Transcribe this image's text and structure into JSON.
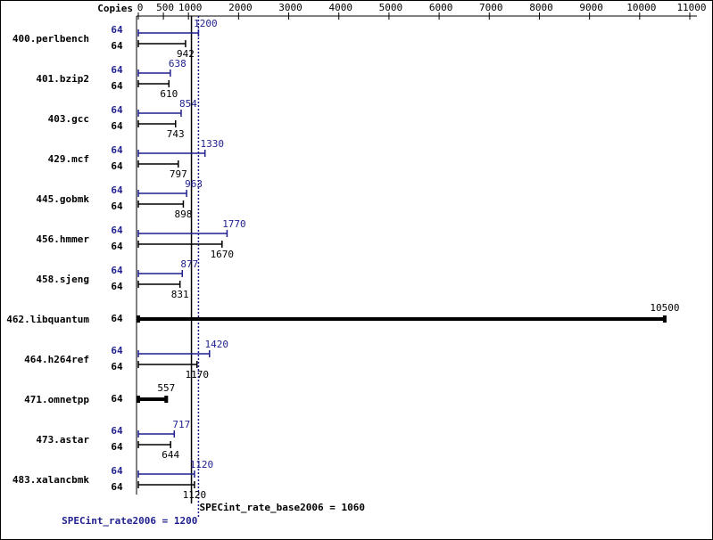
{
  "chart_data": {
    "type": "bar",
    "orientation": "horizontal",
    "x_axis_label": "Copies",
    "categories": [
      "400.perlbench",
      "401.bzip2",
      "403.gcc",
      "429.mcf",
      "445.gobmk",
      "456.hmmer",
      "458.sjeng",
      "462.libquantum",
      "464.h264ref",
      "471.omnetpp",
      "473.astar",
      "483.xalancbmk"
    ],
    "series": [
      {
        "color": "#1f1f8f",
        "copies": [
          64,
          64,
          64,
          64,
          64,
          64,
          64,
          null,
          64,
          null,
          64,
          64
        ],
        "values": [
          1200,
          638,
          854,
          1330,
          963,
          1770,
          877,
          null,
          1420,
          null,
          717,
          1120
        ]
      },
      {
        "color": "#000000",
        "copies": [
          64,
          64,
          64,
          64,
          64,
          64,
          64,
          64,
          64,
          64,
          64,
          64
        ],
        "values": [
          942,
          610,
          743,
          797,
          898,
          1670,
          831,
          10500,
          1170,
          557,
          644,
          1120
        ]
      }
    ],
    "xlim": [
      0,
      11000
    ],
    "xticks": [
      0,
      500,
      1000,
      2000,
      3000,
      4000,
      5000,
      6000,
      7000,
      8000,
      9000,
      10000,
      11000
    ],
    "reference_lines": [
      {
        "label": "SPECint_rate_base2006 = 1060",
        "value": 1060,
        "color": "#000000",
        "style": "solid"
      },
      {
        "label": "SPECint_rate2006 = 1200",
        "value": 1200,
        "color": "#1f1f8f",
        "style": "dotted"
      }
    ]
  }
}
